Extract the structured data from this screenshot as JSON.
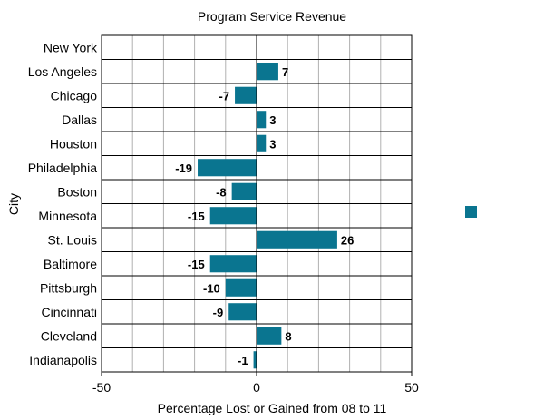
{
  "chart_data": {
    "type": "bar",
    "orientation": "horizontal",
    "title": "Program Service Revenue",
    "xlabel": "Percentage Lost or Gained from 08 to 11",
    "ylabel": "City",
    "xlim": [
      -50,
      50
    ],
    "xticks": [
      -50,
      0,
      50
    ],
    "tick_labels": [
      "-50",
      "0",
      "50"
    ],
    "grid_step": 10,
    "grid": true,
    "categories": [
      "New York",
      "Los Angeles",
      "Chicago",
      "Dallas",
      "Houston",
      "Philadelphia",
      "Boston",
      "Minnesota",
      "St. Louis",
      "Baltimore",
      "Pittsburgh",
      "Cincinnati",
      "Cleveland",
      "Indianapolis"
    ],
    "values": [
      null,
      7,
      -7,
      3,
      3,
      -19,
      -8,
      -15,
      26,
      -15,
      -10,
      -9,
      8,
      -1
    ],
    "data_labels": [
      "",
      "7",
      "-7",
      "3",
      "3",
      "-19",
      "-8",
      "-15",
      "26",
      "-15",
      "-10",
      "-9",
      "8",
      "-1"
    ],
    "bar_color": "#0a7590",
    "legend": {
      "position": "right",
      "entries": [
        ""
      ]
    }
  }
}
